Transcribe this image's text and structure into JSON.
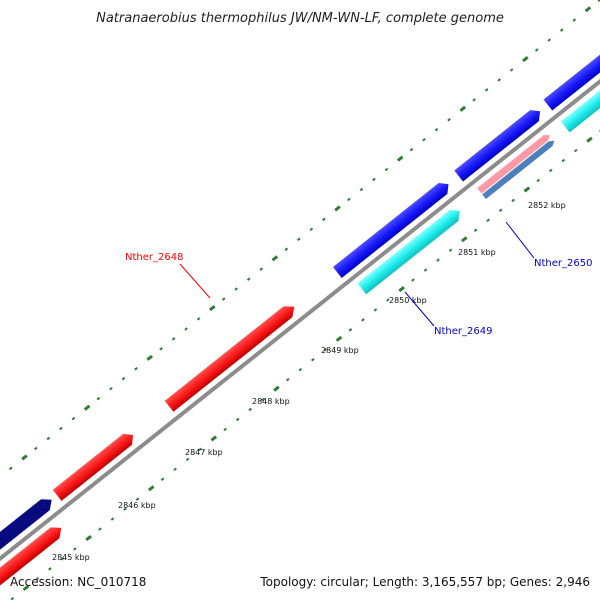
{
  "title": "Natranaerobius thermophilus JW/NM-WN-LF, complete genome",
  "footer": {
    "accession": "Accession: NC_010718",
    "summary": "Topology: circular; Length: 3,165,557 bp; Genes: 2,946"
  },
  "scale_ticks": [
    "2845 kbp",
    "2846 kbp",
    "2847 kbp",
    "2848 kbp",
    "2849 kbp",
    "2850 kbp",
    "2851 kbp",
    "2852 kbp"
  ],
  "gene_labels": [
    {
      "id": "Nther_2648",
      "text": "Nther_2648",
      "color": "#ff0000"
    },
    {
      "id": "Nther_2649",
      "text": "Nther_2649",
      "color": "#0000cc"
    },
    {
      "id": "Nther_2650",
      "text": "Nther_2650",
      "color": "#0000cc"
    }
  ],
  "colors": {
    "backbone": "#8c8c8c",
    "ticks": "#2e7d32",
    "gene_red": "#ff1a1a",
    "gene_blue": "#1a1aff",
    "gene_navy": "#0a0a80",
    "gene_cyan": "#22eeee",
    "gene_pink": "#ff9aa6",
    "gene_steel": "#4d7fbf"
  }
}
